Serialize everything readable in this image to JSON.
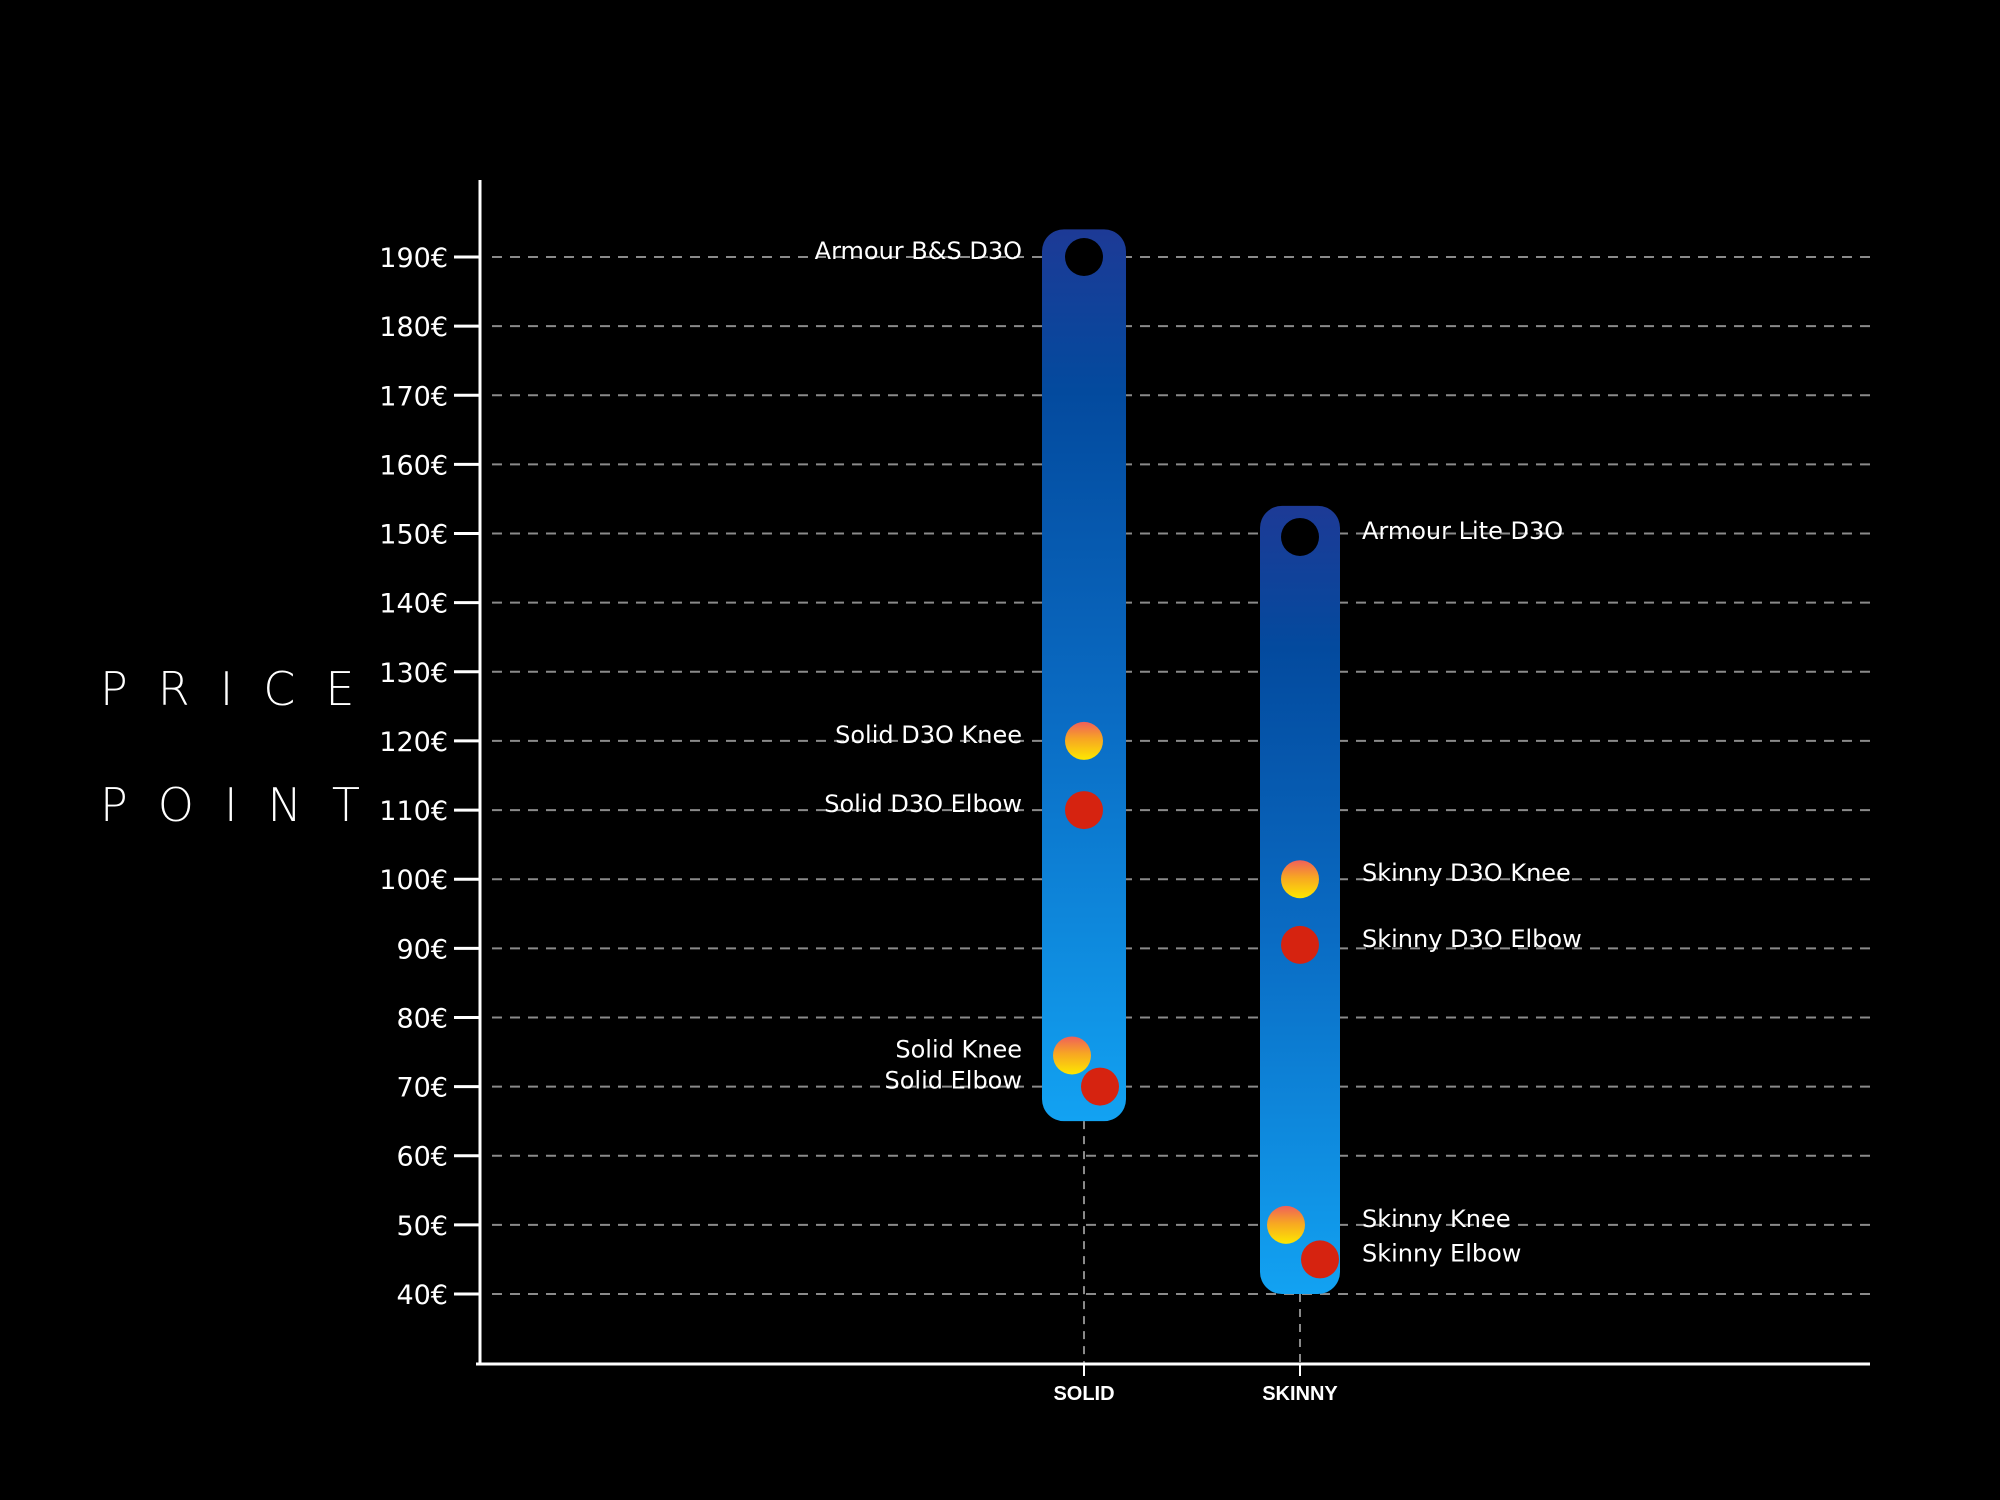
{
  "chart_data": {
    "type": "scatter",
    "title": "",
    "ylabel_words": [
      "PRICE",
      "POINT"
    ],
    "ylim": [
      40,
      190
    ],
    "y_ticks": [
      {
        "value": 190,
        "label": "190€"
      },
      {
        "value": 180,
        "label": "180€"
      },
      {
        "value": 170,
        "label": "170€"
      },
      {
        "value": 160,
        "label": "160€"
      },
      {
        "value": 150,
        "label": "150€"
      },
      {
        "value": 140,
        "label": "140€"
      },
      {
        "value": 130,
        "label": "130€"
      },
      {
        "value": 120,
        "label": "120€"
      },
      {
        "value": 110,
        "label": "110€"
      },
      {
        "value": 100,
        "label": "100€"
      },
      {
        "value": 90,
        "label": "90€"
      },
      {
        "value": 80,
        "label": "80€"
      },
      {
        "value": 70,
        "label": "70€"
      },
      {
        "value": 60,
        "label": "60€"
      },
      {
        "value": 50,
        "label": "50€"
      },
      {
        "value": 40,
        "label": "40€"
      }
    ],
    "grid": true,
    "categories": [
      {
        "label": "SOLID",
        "range": [
          65,
          194
        ],
        "points": [
          {
            "label": "Armour B&S D3O",
            "value": 190,
            "kind": "armour",
            "label_side": "left",
            "offset": 0
          },
          {
            "label": "Solid D3O Knee",
            "value": 120,
            "kind": "knee",
            "label_side": "left",
            "offset": 0
          },
          {
            "label": "Solid D3O Elbow",
            "value": 110,
            "kind": "elbow",
            "label_side": "left",
            "offset": 0
          },
          {
            "label": "Solid Knee",
            "value": 74.5,
            "kind": "knee",
            "label_side": "left",
            "offset": -12
          },
          {
            "label": "Solid Elbow",
            "value": 70,
            "kind": "elbow",
            "label_side": "left",
            "offset": 16
          }
        ]
      },
      {
        "label": "SKINNY",
        "range": [
          40,
          154
        ],
        "points": [
          {
            "label": "Armour Lite D3O",
            "value": 149.5,
            "kind": "armour",
            "label_side": "right",
            "offset": 0
          },
          {
            "label": "Skinny D3O Knee",
            "value": 100,
            "kind": "knee",
            "label_side": "right",
            "offset": 0
          },
          {
            "label": "Skinny D3O Elbow",
            "value": 90.5,
            "kind": "elbow",
            "label_side": "right",
            "offset": 0
          },
          {
            "label": "Skinny Knee",
            "value": 50,
            "kind": "knee",
            "label_side": "right",
            "offset": -14
          },
          {
            "label": "Skinny Elbow",
            "value": 45,
            "kind": "elbow",
            "label_side": "right",
            "offset": 20
          }
        ]
      }
    ],
    "colors": {
      "background": "#000000",
      "axis": "#ffffff",
      "grid": "#8a8a8a",
      "bar_top": "#1d3a96",
      "bar_mid": "#0a55b0",
      "bar_bottom": "#129ff0",
      "armour": "#000000",
      "knee_top": "#f0605a",
      "knee_mid": "#f7a623",
      "knee_bottom": "#fde800",
      "elbow": "#d62310"
    }
  }
}
